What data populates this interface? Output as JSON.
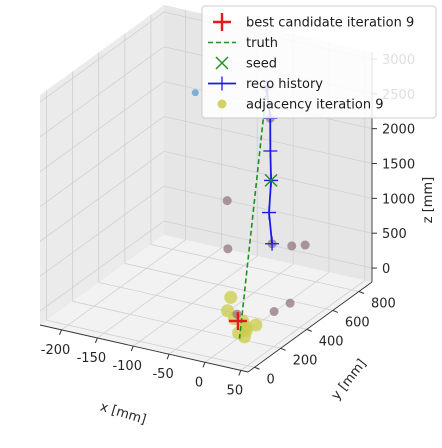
{
  "chart_data": {
    "type": "scatter",
    "projection": "3d",
    "xlabel": "x [mm]",
    "ylabel": "y [mm]",
    "zlabel": "z [mm]",
    "xlim": [
      -230,
      60
    ],
    "ylim": [
      -50,
      900
    ],
    "zlim": [
      -200,
      3100
    ],
    "xticks": [
      "-200",
      "-150",
      "-100",
      "-50",
      "0",
      "50"
    ],
    "xtick_values": [
      -200,
      -150,
      -100,
      -50,
      0,
      50
    ],
    "yticks": [
      "0",
      "200",
      "400",
      "600",
      "800"
    ],
    "ytick_values": [
      0,
      200,
      400,
      600,
      800
    ],
    "zticks": [
      "0",
      "500",
      "1000",
      "1500",
      "2000",
      "2500",
      "3000"
    ],
    "ztick_values": [
      0,
      500,
      1000,
      1500,
      2000,
      2500,
      3000
    ],
    "legend_position": "upper right",
    "legend": [
      {
        "label": "best candidate iteration 9",
        "marker": "plus",
        "color": "#e41a1c"
      },
      {
        "label": "truth",
        "marker": "dashed-line",
        "color": "#1f8f1f"
      },
      {
        "label": "seed",
        "marker": "x",
        "color": "#1f8f1f"
      },
      {
        "label": "reco history",
        "marker": "plus-line",
        "color": "#1a1ae6"
      },
      {
        "label": "adjacency iteration 9",
        "marker": "dot",
        "color": "#c9cc4a"
      }
    ],
    "series": [
      {
        "name": "truth",
        "kind": "line",
        "color": "#1f8f1f",
        "points": [
          [
            -5,
            450,
            3050
          ],
          [
            10,
            160,
            -120
          ]
        ]
      },
      {
        "name": "reco history",
        "kind": "line",
        "color": "#1a1ae6",
        "points": [
          [
            -5,
            450,
            3050
          ],
          [
            0,
            450,
            2620
          ],
          [
            2,
            440,
            2170
          ],
          [
            3,
            440,
            1750
          ],
          [
            2,
            430,
            1300
          ],
          [
            8,
            420,
            880
          ]
        ]
      },
      {
        "name": "seed",
        "kind": "x",
        "color": "#1f8f1f",
        "points": [
          [
            3,
            440,
            1750
          ]
        ]
      },
      {
        "name": "best candidate iteration 9",
        "kind": "plus",
        "color": "#e41a1c",
        "points": [
          [
            -5,
            230,
            0
          ]
        ]
      },
      {
        "name": "adjacency iteration 9",
        "kind": "dot",
        "color": "#c9cc4a",
        "points": [
          [
            -10,
            230,
            20
          ],
          [
            8,
            220,
            -40
          ],
          [
            -25,
            260,
            60
          ],
          [
            12,
            200,
            -60
          ],
          [
            -35,
            340,
            120
          ],
          [
            5,
            180,
            -80
          ],
          [
            20,
            230,
            0
          ],
          [
            -2,
            250,
            -20
          ],
          [
            15,
            170,
            -100
          ]
        ]
      },
      {
        "name": "hits",
        "kind": "dot",
        "color": "#8e6f7a",
        "points": [
          [
            -5,
            450,
            3050
          ],
          [
            0,
            450,
            2620
          ],
          [
            8,
            420,
            880
          ],
          [
            30,
            450,
            860
          ],
          [
            45,
            470,
            880
          ],
          [
            -50,
            400,
            700
          ],
          [
            -60,
            450,
            1300
          ],
          [
            40,
            260,
            200
          ],
          [
            -10,
            250,
            60
          ],
          [
            55,
            300,
            300
          ]
        ]
      },
      {
        "name": "outlier",
        "kind": "dot",
        "color": "#6fa8d6",
        "points": [
          [
            -150,
            700,
            2300
          ]
        ]
      }
    ]
  }
}
